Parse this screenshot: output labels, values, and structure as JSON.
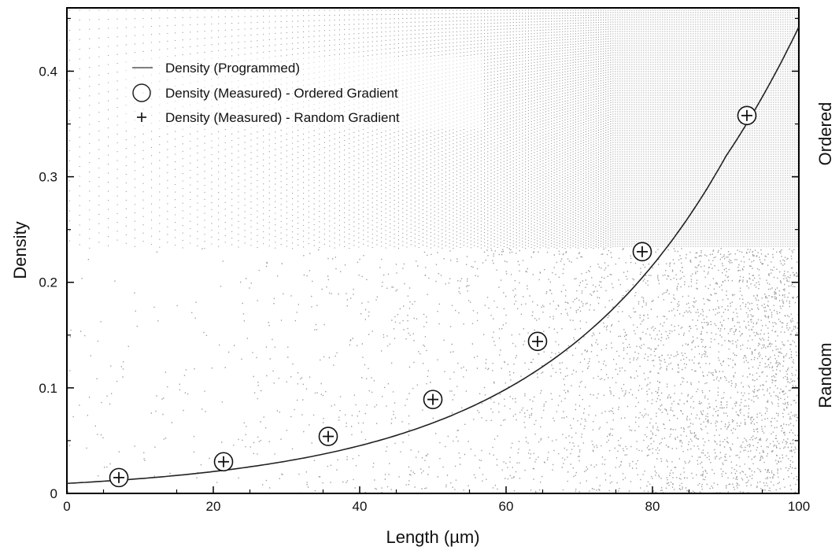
{
  "chart_data": {
    "type": "scatter",
    "xlabel": "Length (µm)",
    "ylabel": "Density",
    "xlim": [
      0,
      100
    ],
    "ylim": [
      0,
      0.46
    ],
    "x_ticks": [
      0,
      20,
      40,
      60,
      80,
      100
    ],
    "x_tick_labels": [
      "0",
      "20",
      "40",
      "60",
      "80",
      "100"
    ],
    "y_ticks": [
      0,
      0.1,
      0.2,
      0.3,
      0.4
    ],
    "y_tick_labels": [
      "0",
      "0.1",
      "0.2",
      "0.3",
      "0.4"
    ],
    "grid": false,
    "legend_position": "top-left",
    "region_labels": {
      "upper": "Ordered",
      "lower": "Random"
    },
    "region_boundary_density": 0.232,
    "series": [
      {
        "name": "Density (Programmed)",
        "kind": "line",
        "x": [
          0,
          10,
          20,
          30,
          40,
          50,
          60,
          70,
          80,
          90,
          100
        ],
        "y": [
          0.0095,
          0.014,
          0.0207,
          0.0306,
          0.0452,
          0.0668,
          0.0988,
          0.146,
          0.216,
          0.319,
          0.442
        ]
      },
      {
        "name": "Density (Measured) - Ordered Gradient",
        "kind": "circle",
        "x": [
          7.1,
          21.4,
          35.7,
          50.0,
          64.3,
          78.6,
          92.9
        ],
        "y": [
          0.015,
          0.03,
          0.054,
          0.089,
          0.144,
          0.229,
          0.358
        ]
      },
      {
        "name": "Density (Measured) - Random Gradient",
        "kind": "plus",
        "x": [
          7.1,
          21.4,
          35.7,
          50.0,
          64.3,
          78.6,
          92.9
        ],
        "y": [
          0.015,
          0.03,
          0.054,
          0.089,
          0.144,
          0.229,
          0.358
        ]
      }
    ],
    "colors": {
      "texture": "#999999",
      "line": "#222222",
      "axis": "#000000"
    }
  }
}
